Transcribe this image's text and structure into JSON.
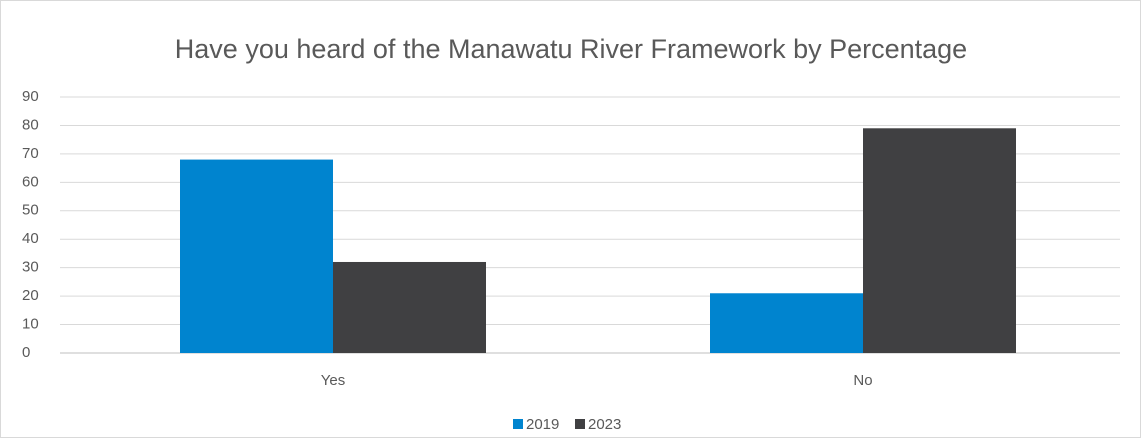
{
  "chart_data": {
    "type": "bar",
    "title": "Have you heard of the Manawatu River Framework by Percentage",
    "categories": [
      "Yes",
      "No"
    ],
    "series": [
      {
        "name": "2019",
        "color": "#0084cf",
        "values": [
          68,
          21
        ]
      },
      {
        "name": "2023",
        "color": "#404042",
        "values": [
          32,
          79
        ]
      }
    ],
    "ylim": [
      0,
      90
    ],
    "yticks": [
      0,
      10,
      20,
      30,
      40,
      50,
      60,
      70,
      80,
      90
    ],
    "grid": true,
    "legend": "bottom"
  }
}
